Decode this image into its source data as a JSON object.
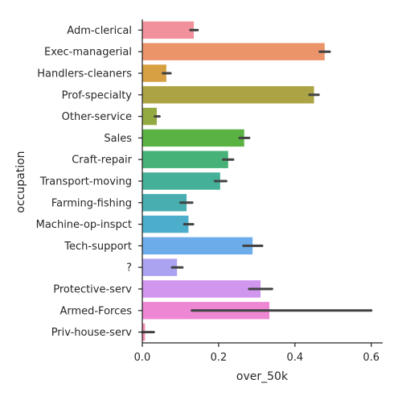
{
  "chart_data": {
    "type": "bar",
    "orientation": "horizontal",
    "xlabel": "over_50k",
    "ylabel": "occupation",
    "xlim": [
      0,
      0.63
    ],
    "xticks": [
      0.0,
      0.2,
      0.4,
      0.6
    ],
    "xtick_labels": [
      "0.0",
      "0.2",
      "0.4",
      "0.6"
    ],
    "grid": false,
    "categories": [
      "Adm-clerical",
      "Exec-managerial",
      "Handlers-cleaners",
      "Prof-specialty",
      "Other-service",
      "Sales",
      "Craft-repair",
      "Transport-moving",
      "Farming-fishing",
      "Machine-op-inspct",
      "Tech-support",
      "?",
      "Protective-serv",
      "Armed-Forces",
      "Priv-house-serv"
    ],
    "values": [
      0.135,
      0.478,
      0.063,
      0.45,
      0.038,
      0.267,
      0.225,
      0.204,
      0.116,
      0.121,
      0.289,
      0.091,
      0.31,
      0.333,
      0.007
    ],
    "ci_low": [
      0.126,
      0.465,
      0.054,
      0.438,
      0.033,
      0.255,
      0.212,
      0.19,
      0.1,
      0.11,
      0.265,
      0.078,
      0.28,
      0.13,
      0.0
    ],
    "ci_high": [
      0.145,
      0.491,
      0.074,
      0.462,
      0.045,
      0.28,
      0.238,
      0.22,
      0.131,
      0.133,
      0.314,
      0.105,
      0.34,
      0.6,
      0.03
    ],
    "colors": [
      "#f0919b",
      "#eb946a",
      "#d6a043",
      "#aca444",
      "#93aa43",
      "#59b241",
      "#46b278",
      "#44b098",
      "#48aeb0",
      "#4caecb",
      "#6dacea",
      "#aba3f0",
      "#d196ee",
      "#ed86d3",
      "#f38aaf"
    ]
  }
}
